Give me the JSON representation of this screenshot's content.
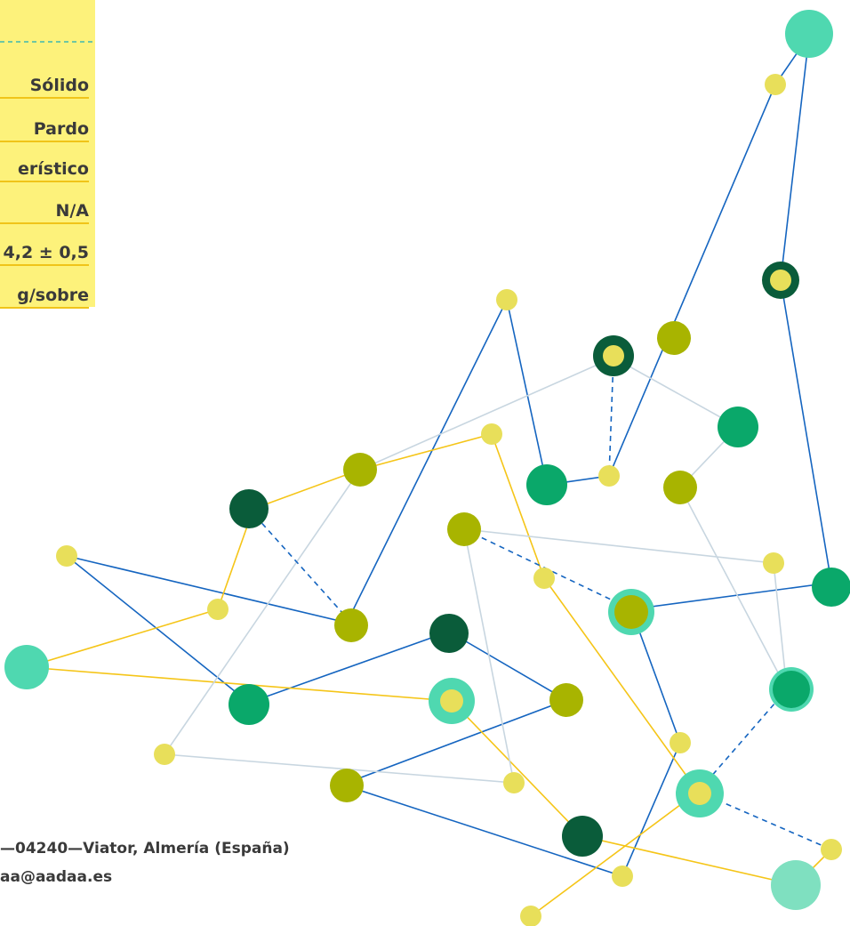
{
  "panel": {
    "rows": [
      "Sólido",
      "Pardo",
      "erístico",
      "N/A",
      "4,2 ± 0,5",
      "g/sobre"
    ]
  },
  "footer": {
    "address": "—04240—Viator, Almería (España)",
    "email": "aa@aadaa.es"
  }
}
